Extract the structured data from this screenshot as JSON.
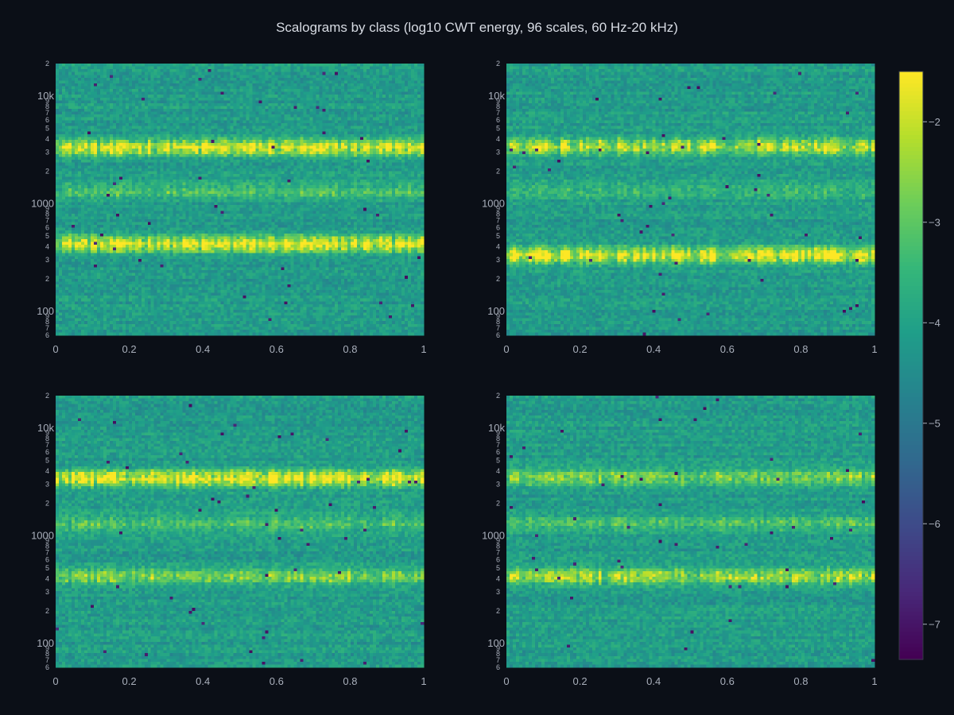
{
  "chart_data": {
    "type": "heatmap",
    "title": "Scalograms by class (log10 CWT energy, 96 scales, 60 Hz-20 kHz)",
    "colorscale": "Viridis",
    "zrange": [
      -7.35,
      -1.5
    ],
    "colorbar_ticks": [
      "−2",
      "−3",
      "−4",
      "−5",
      "−6",
      "−7"
    ],
    "colorbar_values": [
      -2,
      -3,
      -4,
      -5,
      -6,
      -7
    ],
    "x_range": [
      0,
      1
    ],
    "x_ticks": [
      "0",
      "0.2",
      "0.4",
      "0.6",
      "0.8",
      "1"
    ],
    "x_tick_values": [
      0,
      0.2,
      0.4,
      0.6,
      0.8,
      1
    ],
    "y_scale": "log",
    "y_range_hz": [
      60,
      20000
    ],
    "y_major_ticks": [
      {
        "label": "100",
        "value": 100
      },
      {
        "label": "1000",
        "value": 1000
      },
      {
        "label": "10k",
        "value": 10000
      }
    ],
    "y_minor_ticks": [
      {
        "label": "6",
        "value": 60
      },
      {
        "label": "7",
        "value": 70
      },
      {
        "label": "8",
        "value": 80
      },
      {
        "label": "9",
        "value": 90
      },
      {
        "label": "2",
        "value": 200
      },
      {
        "label": "3",
        "value": 300
      },
      {
        "label": "4",
        "value": 400
      },
      {
        "label": "5",
        "value": 500
      },
      {
        "label": "6",
        "value": 600
      },
      {
        "label": "7",
        "value": 700
      },
      {
        "label": "8",
        "value": 800
      },
      {
        "label": "9",
        "value": 900
      },
      {
        "label": "2",
        "value": 2000
      },
      {
        "label": "3",
        "value": 3000
      },
      {
        "label": "4",
        "value": 4000
      },
      {
        "label": "5",
        "value": 5000
      },
      {
        "label": "6",
        "value": 6000
      },
      {
        "label": "7",
        "value": 7000
      },
      {
        "label": "8",
        "value": 8000
      },
      {
        "label": "9",
        "value": 9000
      },
      {
        "label": "2",
        "value": 20000
      }
    ],
    "panels": [
      {
        "bands_hz": [
          [
            3300,
            0.9
          ],
          [
            420,
            1.0
          ],
          [
            1300,
            0.35
          ]
        ]
      },
      {
        "bands_hz": [
          [
            3400,
            0.85
          ],
          [
            330,
            1.0
          ],
          [
            1300,
            0.3
          ]
        ]
      },
      {
        "bands_hz": [
          [
            3400,
            1.0
          ],
          [
            420,
            0.55
          ],
          [
            1300,
            0.4
          ]
        ]
      },
      {
        "bands_hz": [
          [
            3500,
            0.55
          ],
          [
            420,
            0.75
          ],
          [
            1300,
            0.35
          ]
        ]
      }
    ]
  }
}
